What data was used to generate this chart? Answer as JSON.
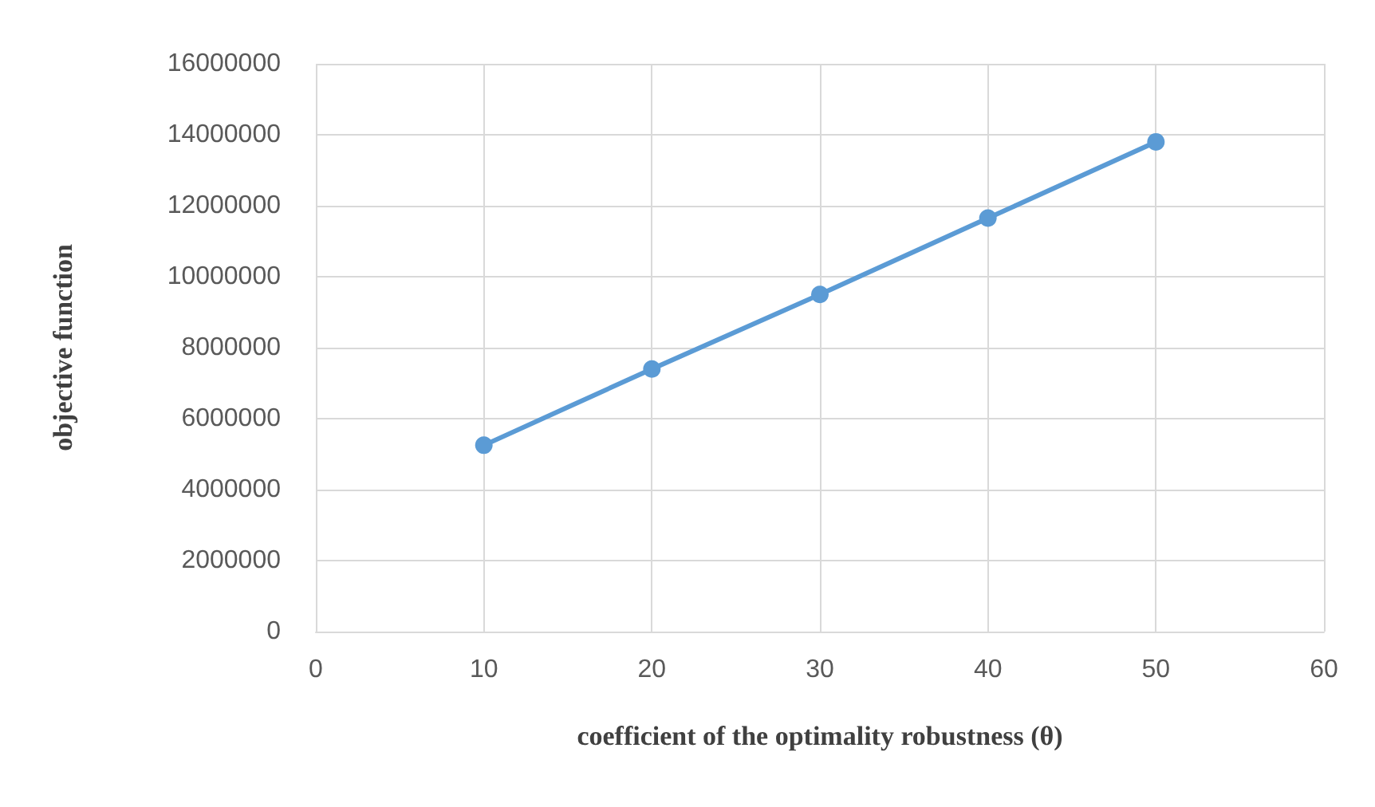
{
  "chart_data": {
    "type": "line",
    "xlabel": "coefficient of the optimality robustness (θ)",
    "ylabel": "objective function",
    "x": [
      10,
      20,
      30,
      40,
      50
    ],
    "series": [
      {
        "color": "#5b9bd5",
        "values": [
          5250000,
          7400000,
          9500000,
          11650000,
          13800000
        ]
      }
    ],
    "xlim": [
      0,
      60
    ],
    "xticks": [
      0,
      10,
      20,
      30,
      40,
      50,
      60
    ],
    "ylim": [
      0,
      16000000
    ],
    "yticks": [
      0,
      2000000,
      4000000,
      6000000,
      8000000,
      10000000,
      12000000,
      14000000,
      16000000
    ],
    "grid": true,
    "marker": "circle",
    "line_style": "solid"
  }
}
